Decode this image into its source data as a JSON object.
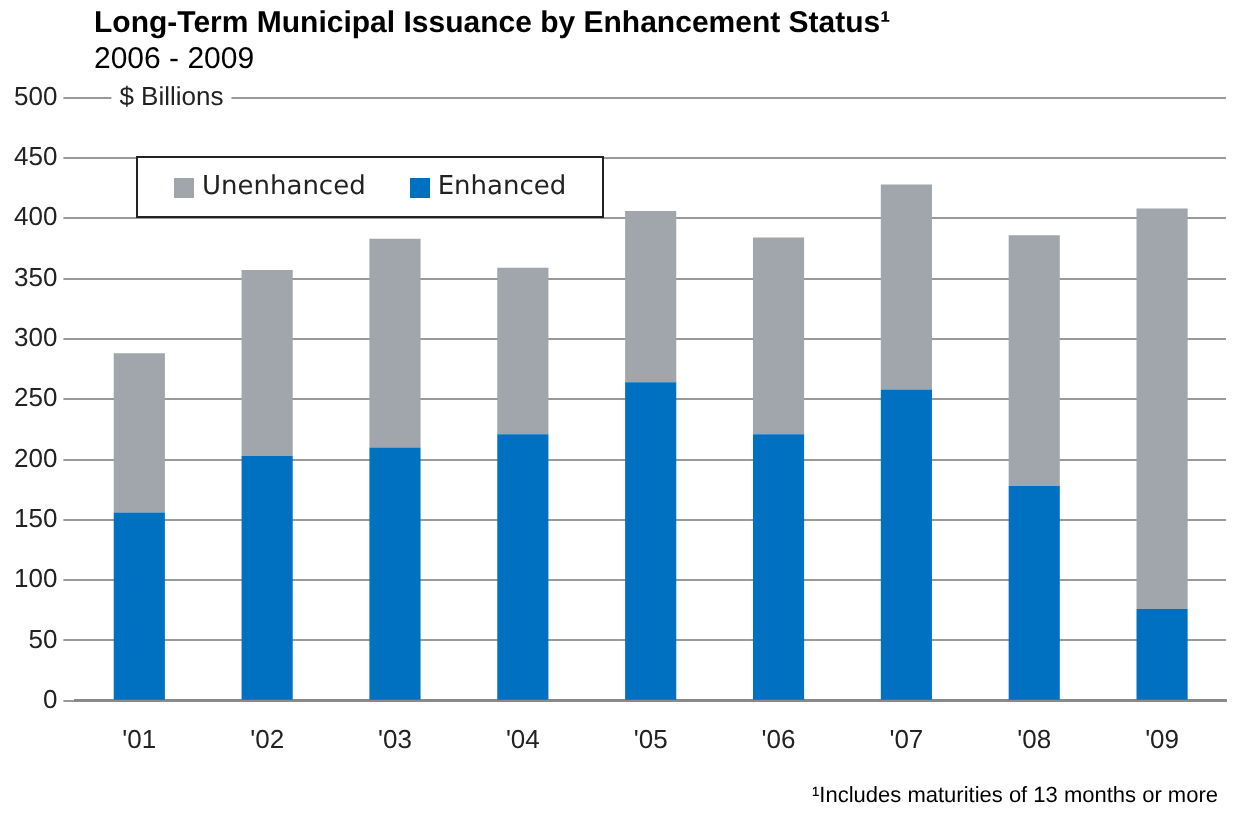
{
  "chart_data": {
    "type": "bar",
    "title": "Long-Term Municipal Issuance by Enhancement Status¹",
    "subtitle": "2006 - 2009",
    "ylabel": "$ Billions",
    "categories": [
      "'01",
      "'02",
      "'03",
      "'04",
      "'05",
      "'06",
      "'07",
      "'08",
      "'09"
    ],
    "series": [
      {
        "name": "Enhanced",
        "color": "#0070c0",
        "values": [
          156,
          203,
          210,
          221,
          264,
          221,
          258,
          178,
          76
        ]
      },
      {
        "name": "Unenhanced",
        "color": "#a0a6ab",
        "values": [
          132,
          154,
          173,
          138,
          142,
          163,
          170,
          208,
          332
        ]
      }
    ],
    "stacked": true,
    "ylim": [
      0,
      500
    ],
    "yticks": [
      0,
      50,
      100,
      150,
      200,
      250,
      300,
      350,
      400,
      450,
      500
    ],
    "grid": "y",
    "legend": "top left",
    "annotations": [
      "¹Includes maturities of 13 months or more"
    ]
  }
}
